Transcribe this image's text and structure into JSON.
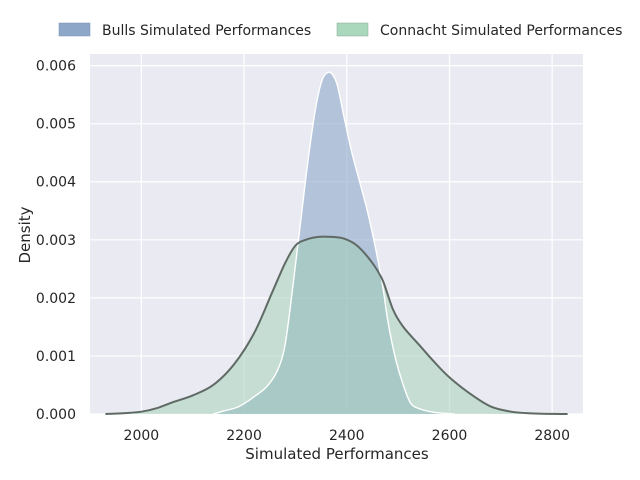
{
  "chart_data": {
    "type": "area",
    "xlabel": "Simulated Performances",
    "ylabel": "Density",
    "xlim": [
      1900,
      2860
    ],
    "ylim": [
      0,
      0.0062
    ],
    "x_ticks": [
      2000,
      2200,
      2400,
      2600,
      2800
    ],
    "x_tick_labels": [
      "2000",
      "2200",
      "2400",
      "2600",
      "2800"
    ],
    "y_ticks": [
      0,
      0.001,
      0.002,
      0.003,
      0.004,
      0.005,
      0.006
    ],
    "y_tick_labels": [
      "0.000",
      "0.001",
      "0.002",
      "0.003",
      "0.004",
      "0.005",
      "0.006"
    ],
    "grid": true,
    "legend_position": "top (above plot)",
    "series": [
      {
        "name": "Bulls Simulated Performances",
        "fill_color": "#8ea8c9",
        "legend_color": "#8da7c9",
        "x": [
          2140,
          2160,
          2190,
          2220,
          2245,
          2265,
          2280,
          2295,
          2310,
          2325,
          2340,
          2352,
          2363,
          2372,
          2382,
          2395,
          2410,
          2425,
          2440,
          2455,
          2470,
          2480,
          2495,
          2510,
          2525,
          2545,
          2570,
          2595,
          2610
        ],
        "values": [
          0.0,
          5e-05,
          0.00013,
          0.0003,
          0.00048,
          0.00075,
          0.0012,
          0.0022,
          0.0033,
          0.0044,
          0.0053,
          0.00575,
          0.00588,
          0.00585,
          0.00565,
          0.0051,
          0.0045,
          0.004,
          0.0035,
          0.0029,
          0.0022,
          0.0016,
          0.00095,
          0.0005,
          0.00018,
          8e-05,
          3e-05,
          1e-05,
          0.0
        ]
      },
      {
        "name": "Connacht Simulated Performances",
        "fill_color": "#9fcfb3",
        "legend_color": "#a9d8bc",
        "x": [
          1930,
          1960,
          2000,
          2030,
          2060,
          2100,
          2140,
          2180,
          2220,
          2255,
          2280,
          2300,
          2320,
          2345,
          2370,
          2395,
          2420,
          2450,
          2470,
          2490,
          2510,
          2540,
          2570,
          2600,
          2640,
          2680,
          2720,
          2760,
          2800,
          2830
        ],
        "values": [
          0.0,
          1e-05,
          4e-05,
          0.0001,
          0.0002,
          0.00032,
          0.0005,
          0.00085,
          0.0014,
          0.0021,
          0.0026,
          0.0029,
          0.003,
          0.00305,
          0.00305,
          0.00302,
          0.0029,
          0.0026,
          0.0023,
          0.0018,
          0.0015,
          0.0012,
          0.0009,
          0.00063,
          0.00035,
          0.00013,
          4e-05,
          1e-05,
          2e-06,
          0.0
        ]
      }
    ]
  }
}
